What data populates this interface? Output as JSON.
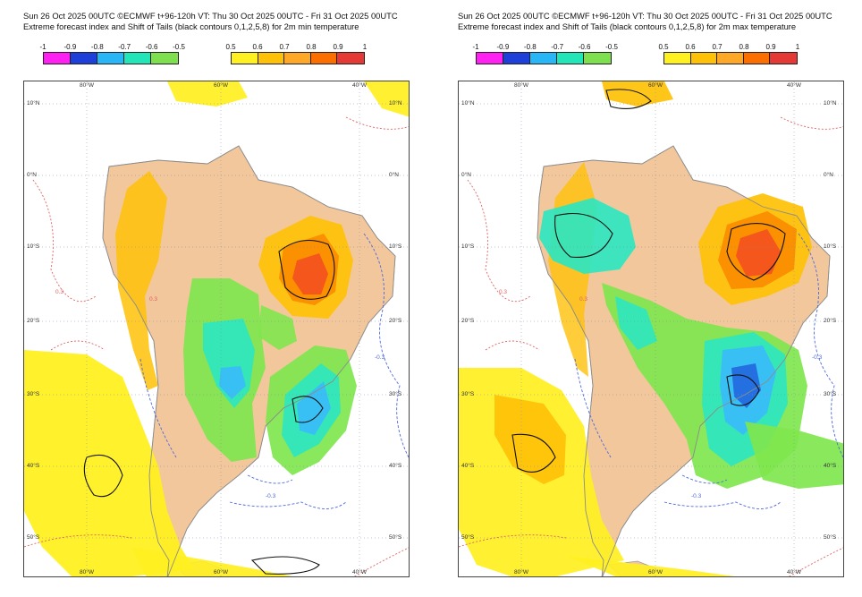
{
  "colors": {
    "land": "#f2c79b",
    "green": "#7fe64e",
    "cyan": "#2ee6c0",
    "sky": "#38bdf8",
    "blue": "#1d4ed8",
    "yellow": "#fff021",
    "amber": "#ffc107",
    "orange": "#fb8c00",
    "darkorange": "#f4511e",
    "red": "#e53935",
    "contour_red": "#e06060",
    "contour_blue": "#4d6ae0",
    "grid": "#7d8fb0"
  },
  "colorbar": {
    "cold_ticks": [
      "-1",
      "-0.9",
      "-0.8",
      "-0.7",
      "-0.6",
      "-0.5"
    ],
    "cold_colors": [
      "#ff20f2",
      "#1e40d8",
      "#29b6f6",
      "#22e6b8",
      "#7ee04f"
    ],
    "warm_ticks": [
      "0.5",
      "0.6",
      "0.7",
      "0.8",
      "0.9",
      "1"
    ],
    "warm_colors": [
      "#fff021",
      "#ffc107",
      "#ffa726",
      "#fb6f00",
      "#e53935"
    ]
  },
  "grid_labels": {
    "lat": [
      "10°N",
      "0°N",
      "10°S",
      "20°S",
      "30°S",
      "40°S",
      "50°S"
    ],
    "lon": [
      "80°W",
      "60°W",
      "40°W"
    ]
  },
  "contour_labels": [
    "-0.3",
    "0.3"
  ],
  "panels": [
    {
      "title_line1": "Sun 26 Oct 2025 00UTC ©ECMWF t+96-120h  VT: Thu 30 Oct 2025 00UTC - Fri 31 Oct 2025 00UTC",
      "title_line2": "Extreme forecast index and Shift of Tails (black contours 0,1,2,5,8) for 2m min temperature",
      "variable": "2m min temperature"
    },
    {
      "title_line1": "Sun 26 Oct 2025 00UTC ©ECMWF t+96-120h  VT: Thu 30 Oct 2025 00UTC - Fri 31 Oct 2025 00UTC",
      "title_line2": "Extreme forecast index and Shift of Tails (black contours 0,1,2,5,8) for 2m max temperature",
      "variable": "2m max temperature"
    }
  ]
}
